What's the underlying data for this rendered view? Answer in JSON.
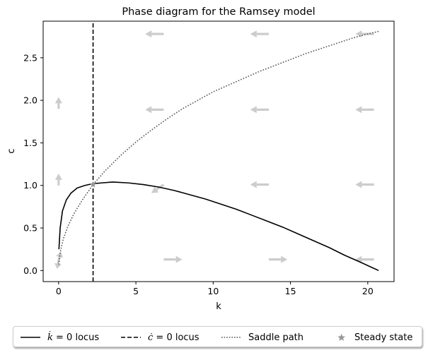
{
  "chart_data": {
    "type": "line",
    "title": "Phase diagram for the Ramsey model",
    "xlabel": "k",
    "ylabel": "c",
    "xlim": [
      -1.0,
      21.7
    ],
    "ylim": [
      -0.13,
      2.93
    ],
    "xticks": [
      0,
      5,
      10,
      15,
      20
    ],
    "xtick_labels": [
      "0",
      "5",
      "10",
      "15",
      "20"
    ],
    "yticks": [
      0.0,
      0.5,
      1.0,
      1.5,
      2.0,
      2.5
    ],
    "ytick_labels": [
      "0.0",
      "0.5",
      "1.0",
      "1.5",
      "2.0",
      "2.5"
    ],
    "grid": false,
    "legend_position": "bottom-outside",
    "series": [
      {
        "name": "k̇ = 0 locus",
        "style": "solid",
        "color": "#000000",
        "x": [
          0.02,
          0.1,
          0.25,
          0.5,
          0.8,
          1.2,
          1.7,
          2.2,
          2.8,
          3.5,
          4.5,
          5.5,
          6.5,
          7.5,
          8.5,
          9.5,
          10.5,
          11.5,
          12.5,
          13.5,
          14.5,
          15.5,
          16.5,
          17.5,
          18.5,
          19.5,
          20.7
        ],
        "y": [
          0.25,
          0.5,
          0.7,
          0.83,
          0.91,
          0.97,
          1.0,
          1.02,
          1.03,
          1.04,
          1.03,
          1.01,
          0.98,
          0.94,
          0.89,
          0.84,
          0.78,
          0.72,
          0.65,
          0.58,
          0.51,
          0.43,
          0.35,
          0.27,
          0.18,
          0.1,
          0.0
        ]
      },
      {
        "name": "ċ = 0 locus",
        "style": "dashed",
        "color": "#000000",
        "x": [
          2.23,
          2.23
        ],
        "y": [
          -0.13,
          2.93
        ]
      },
      {
        "name": "Saddle path",
        "style": "dotted",
        "color": "#555555",
        "x": [
          0.01,
          0.1,
          0.3,
          0.6,
          1.0,
          1.5,
          2.23,
          3.0,
          4.0,
          5.0,
          6.0,
          7.0,
          8.0,
          9.0,
          10.0,
          11.0,
          12.0,
          13.0,
          14.0,
          15.0,
          16.0,
          17.0,
          18.0,
          19.0,
          20.0,
          20.7
        ],
        "y": [
          0.07,
          0.21,
          0.37,
          0.52,
          0.67,
          0.82,
          1.01,
          1.17,
          1.35,
          1.51,
          1.65,
          1.78,
          1.9,
          2.0,
          2.1,
          2.18,
          2.26,
          2.34,
          2.41,
          2.48,
          2.55,
          2.61,
          2.67,
          2.73,
          2.78,
          2.81
        ]
      }
    ],
    "steady_state": {
      "name": "Steady state",
      "k": 2.23,
      "c": 1.01,
      "color": "#999999"
    },
    "arrows": {
      "color": "#cccccc",
      "vectors": [
        {
          "x": 0.0,
          "y": 0.12,
          "dx": -0.1,
          "dy": -0.1
        },
        {
          "x": 0.0,
          "y": 0.12,
          "dx": 0.15,
          "dy": 0.1
        },
        {
          "x": 0.0,
          "y": 1.0,
          "dx": 0.0,
          "dy": 0.14
        },
        {
          "x": 0.0,
          "y": 1.9,
          "dx": 0.0,
          "dy": 0.14
        },
        {
          "x": 6.8,
          "y": 0.13,
          "dx": 1.2,
          "dy": 0.0
        },
        {
          "x": 6.8,
          "y": 1.01,
          "dx": -0.8,
          "dy": -0.1
        },
        {
          "x": 6.8,
          "y": 1.89,
          "dx": -1.2,
          "dy": 0.0
        },
        {
          "x": 6.8,
          "y": 2.78,
          "dx": -1.2,
          "dy": 0.0
        },
        {
          "x": 13.6,
          "y": 0.13,
          "dx": 1.2,
          "dy": 0.0
        },
        {
          "x": 13.6,
          "y": 1.01,
          "dx": -1.2,
          "dy": 0.0
        },
        {
          "x": 13.6,
          "y": 1.89,
          "dx": -1.2,
          "dy": 0.0
        },
        {
          "x": 13.6,
          "y": 2.78,
          "dx": -1.2,
          "dy": 0.0
        },
        {
          "x": 20.4,
          "y": 0.13,
          "dx": -1.2,
          "dy": 0.0
        },
        {
          "x": 20.4,
          "y": 1.01,
          "dx": -1.2,
          "dy": 0.0
        },
        {
          "x": 20.4,
          "y": 1.89,
          "dx": -1.2,
          "dy": 0.0
        },
        {
          "x": 20.4,
          "y": 2.78,
          "dx": -1.2,
          "dy": 0.0
        }
      ]
    }
  },
  "legend": {
    "items": [
      {
        "key": "kdot",
        "prefix": "",
        "label": " = 0 locus",
        "symbol": "k̇"
      },
      {
        "key": "cdot",
        "prefix": "",
        "label": " = 0 locus",
        "symbol": "ċ"
      },
      {
        "key": "saddle",
        "prefix": "",
        "label": "Saddle path",
        "symbol": ""
      },
      {
        "key": "steady",
        "prefix": "",
        "label": "Steady state",
        "symbol": ""
      }
    ]
  }
}
